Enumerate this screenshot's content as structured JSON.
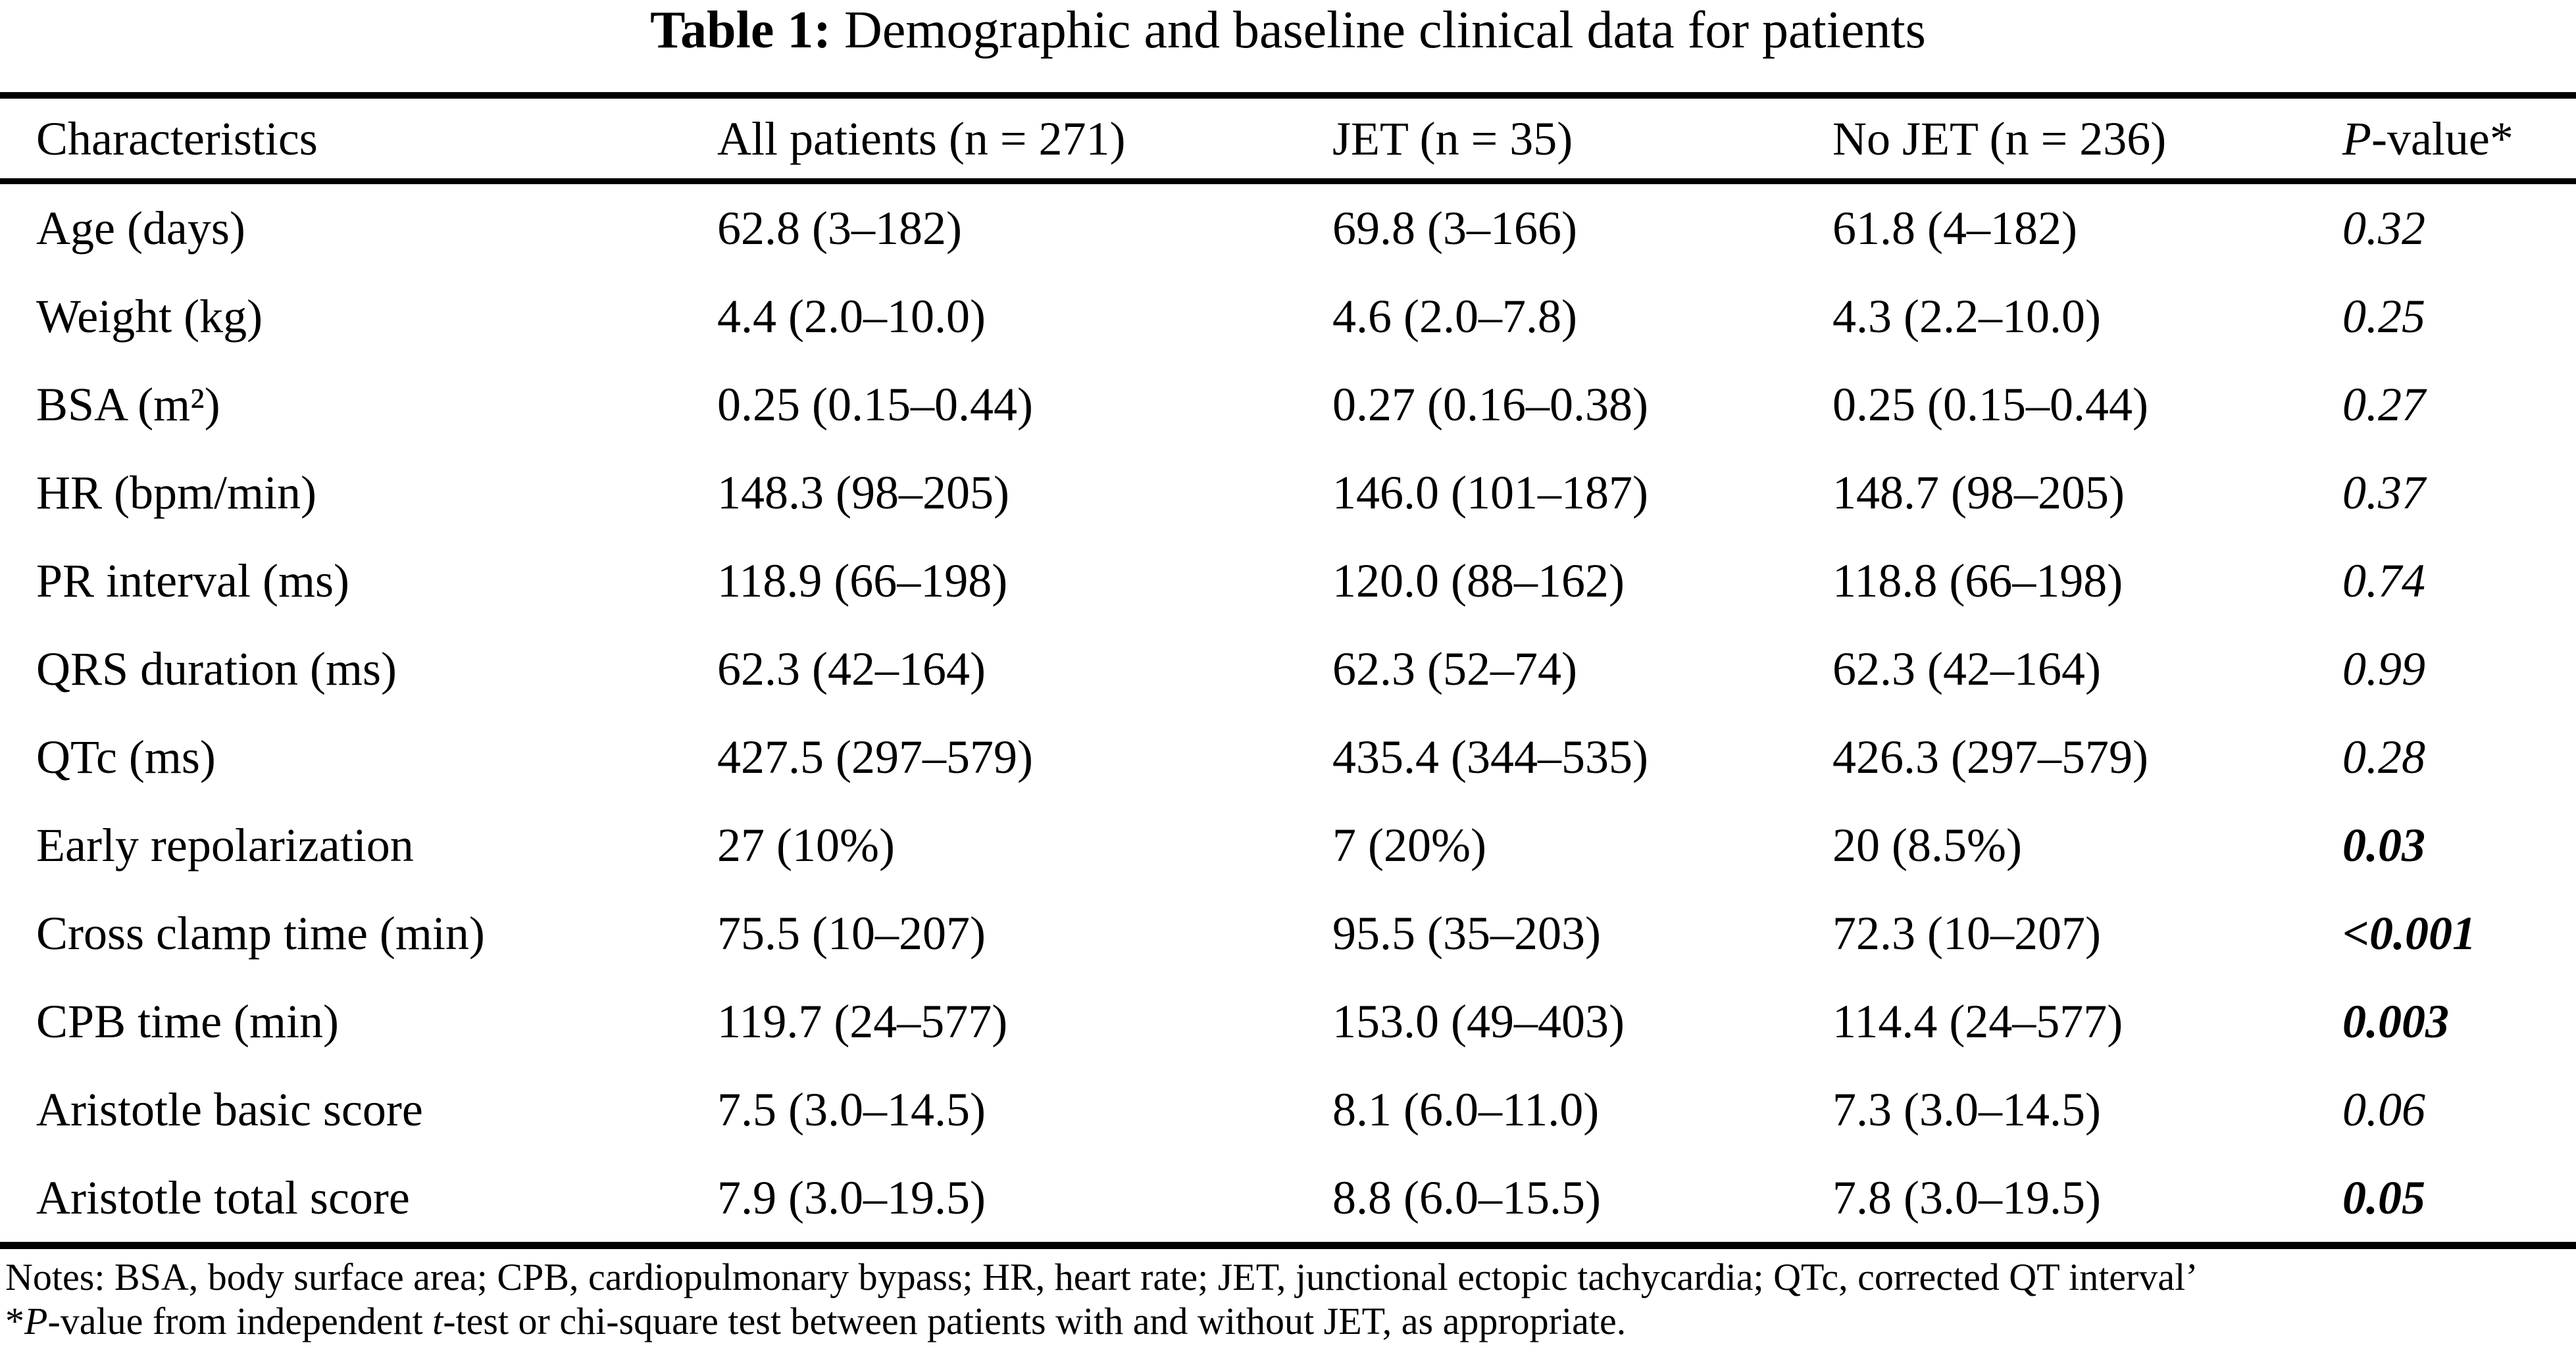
{
  "page": {
    "background_color": "#ffffff",
    "text_color": "#000000"
  },
  "title": {
    "label": "Table 1:",
    "text": " Demographic and baseline clinical data for patients"
  },
  "table": {
    "headers": {
      "characteristics": "Characteristics",
      "all_patients": "All patients (n = 271)",
      "jet": "JET (n = 35)",
      "no_jet": "No JET (n = 236)",
      "p_value_italic": "P",
      "p_value_rest": "-value*"
    },
    "rows": [
      {
        "characteristic": "Age (days)",
        "all_patients": "62.8 (3–182)",
        "jet": "69.8 (3–166)",
        "no_jet": "61.8 (4–182)",
        "p_value": "0.32",
        "p_bold": false
      },
      {
        "characteristic": "Weight (kg)",
        "all_patients": "4.4 (2.0–10.0)",
        "jet": "4.6 (2.0–7.8)",
        "no_jet": "4.3 (2.2–10.0)",
        "p_value": "0.25",
        "p_bold": false
      },
      {
        "characteristic": "BSA (m²)",
        "all_patients": "0.25 (0.15–0.44)",
        "jet": "0.27 (0.16–0.38)",
        "no_jet": "0.25 (0.15–0.44)",
        "p_value": "0.27",
        "p_bold": false
      },
      {
        "characteristic": "HR (bpm/min)",
        "all_patients": "148.3 (98–205)",
        "jet": "146.0 (101–187)",
        "no_jet": "148.7 (98–205)",
        "p_value": "0.37",
        "p_bold": false
      },
      {
        "characteristic": "PR interval (ms)",
        "all_patients": "118.9 (66–198)",
        "jet": "120.0 (88–162)",
        "no_jet": "118.8 (66–198)",
        "p_value": "0.74",
        "p_bold": false
      },
      {
        "characteristic": "QRS duration (ms)",
        "all_patients": "62.3 (42–164)",
        "jet": "62.3 (52–74)",
        "no_jet": "62.3 (42–164)",
        "p_value": "0.99",
        "p_bold": false
      },
      {
        "characteristic": "QTc (ms)",
        "all_patients": "427.5 (297–579)",
        "jet": "435.4 (344–535)",
        "no_jet": "426.3 (297–579)",
        "p_value": "0.28",
        "p_bold": false
      },
      {
        "characteristic": "Early repolarization",
        "all_patients": "27 (10%)",
        "jet": "7 (20%)",
        "no_jet": "20 (8.5%)",
        "p_value": "0.03",
        "p_bold": true
      },
      {
        "characteristic": "Cross clamp time (min)",
        "all_patients": "75.5 (10–207)",
        "jet": "95.5 (35–203)",
        "no_jet": "72.3 (10–207)",
        "p_value": "<0.001",
        "p_bold": true
      },
      {
        "characteristic": "CPB time (min)",
        "all_patients": "119.7 (24–577)",
        "jet": "153.0 (49–403)",
        "no_jet": "114.4 (24–577)",
        "p_value": "0.003",
        "p_bold": true
      },
      {
        "characteristic": "Aristotle basic score",
        "all_patients": "7.5 (3.0–14.5)",
        "jet": "8.1 (6.0–11.0)",
        "no_jet": "7.3 (3.0–14.5)",
        "p_value": "0.06",
        "p_bold": false
      },
      {
        "characteristic": "Aristotle total score",
        "all_patients": "7.9 (3.0–19.5)",
        "jet": "8.8 (6.0–15.5)",
        "no_jet": "7.8 (3.0–19.5)",
        "p_value": "0.05",
        "p_bold": true
      }
    ]
  },
  "notes": {
    "line1": "Notes: BSA, body surface area; CPB, cardiopulmonary bypass; HR, heart rate; JET, junctional ectopic tachycardia; QTc, corrected QT interval’",
    "line2_prefix": "*",
    "line2_p": "P",
    "line2_mid": "-value from independent ",
    "line2_t": "t",
    "line2_suffix": "-test or chi-square test between patients with and without JET, as appropriate."
  }
}
